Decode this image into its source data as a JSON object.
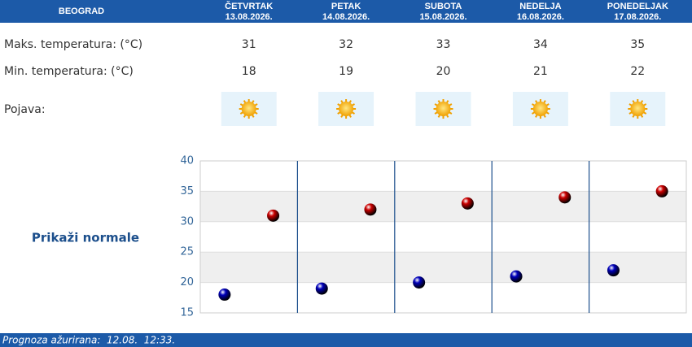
{
  "header": {
    "city": "BEOGRAD"
  },
  "table": {
    "columns": [
      {
        "day": "ČETVRTAK",
        "date": "13.08.2026."
      },
      {
        "day": "PETAK",
        "date": "14.08.2026."
      },
      {
        "day": "SUBOTA",
        "date": "15.08.2026."
      },
      {
        "day": "NEDELJA",
        "date": "16.08.2026."
      },
      {
        "day": "PONEDELJAK",
        "date": "17.08.2026."
      }
    ],
    "row_labels": [
      "Maks. temperatura: (°C)",
      "Min. temperatura: (°C)",
      "Pojava:"
    ]
  },
  "chart_data": {
    "type": "scatter",
    "ylim": [
      15,
      40
    ],
    "yticks": [
      15,
      20,
      25,
      30,
      35,
      40
    ],
    "series": [
      {
        "color": "#cc0000",
        "values": [
          31,
          32,
          33,
          34,
          35
        ]
      },
      {
        "color": "#0000bb",
        "values": [
          18,
          19,
          20,
          21,
          22
        ]
      }
    ]
  },
  "toggle": "Prikaži normale",
  "footer": "Prognoza ažurirana:  12.08.  12:33."
}
